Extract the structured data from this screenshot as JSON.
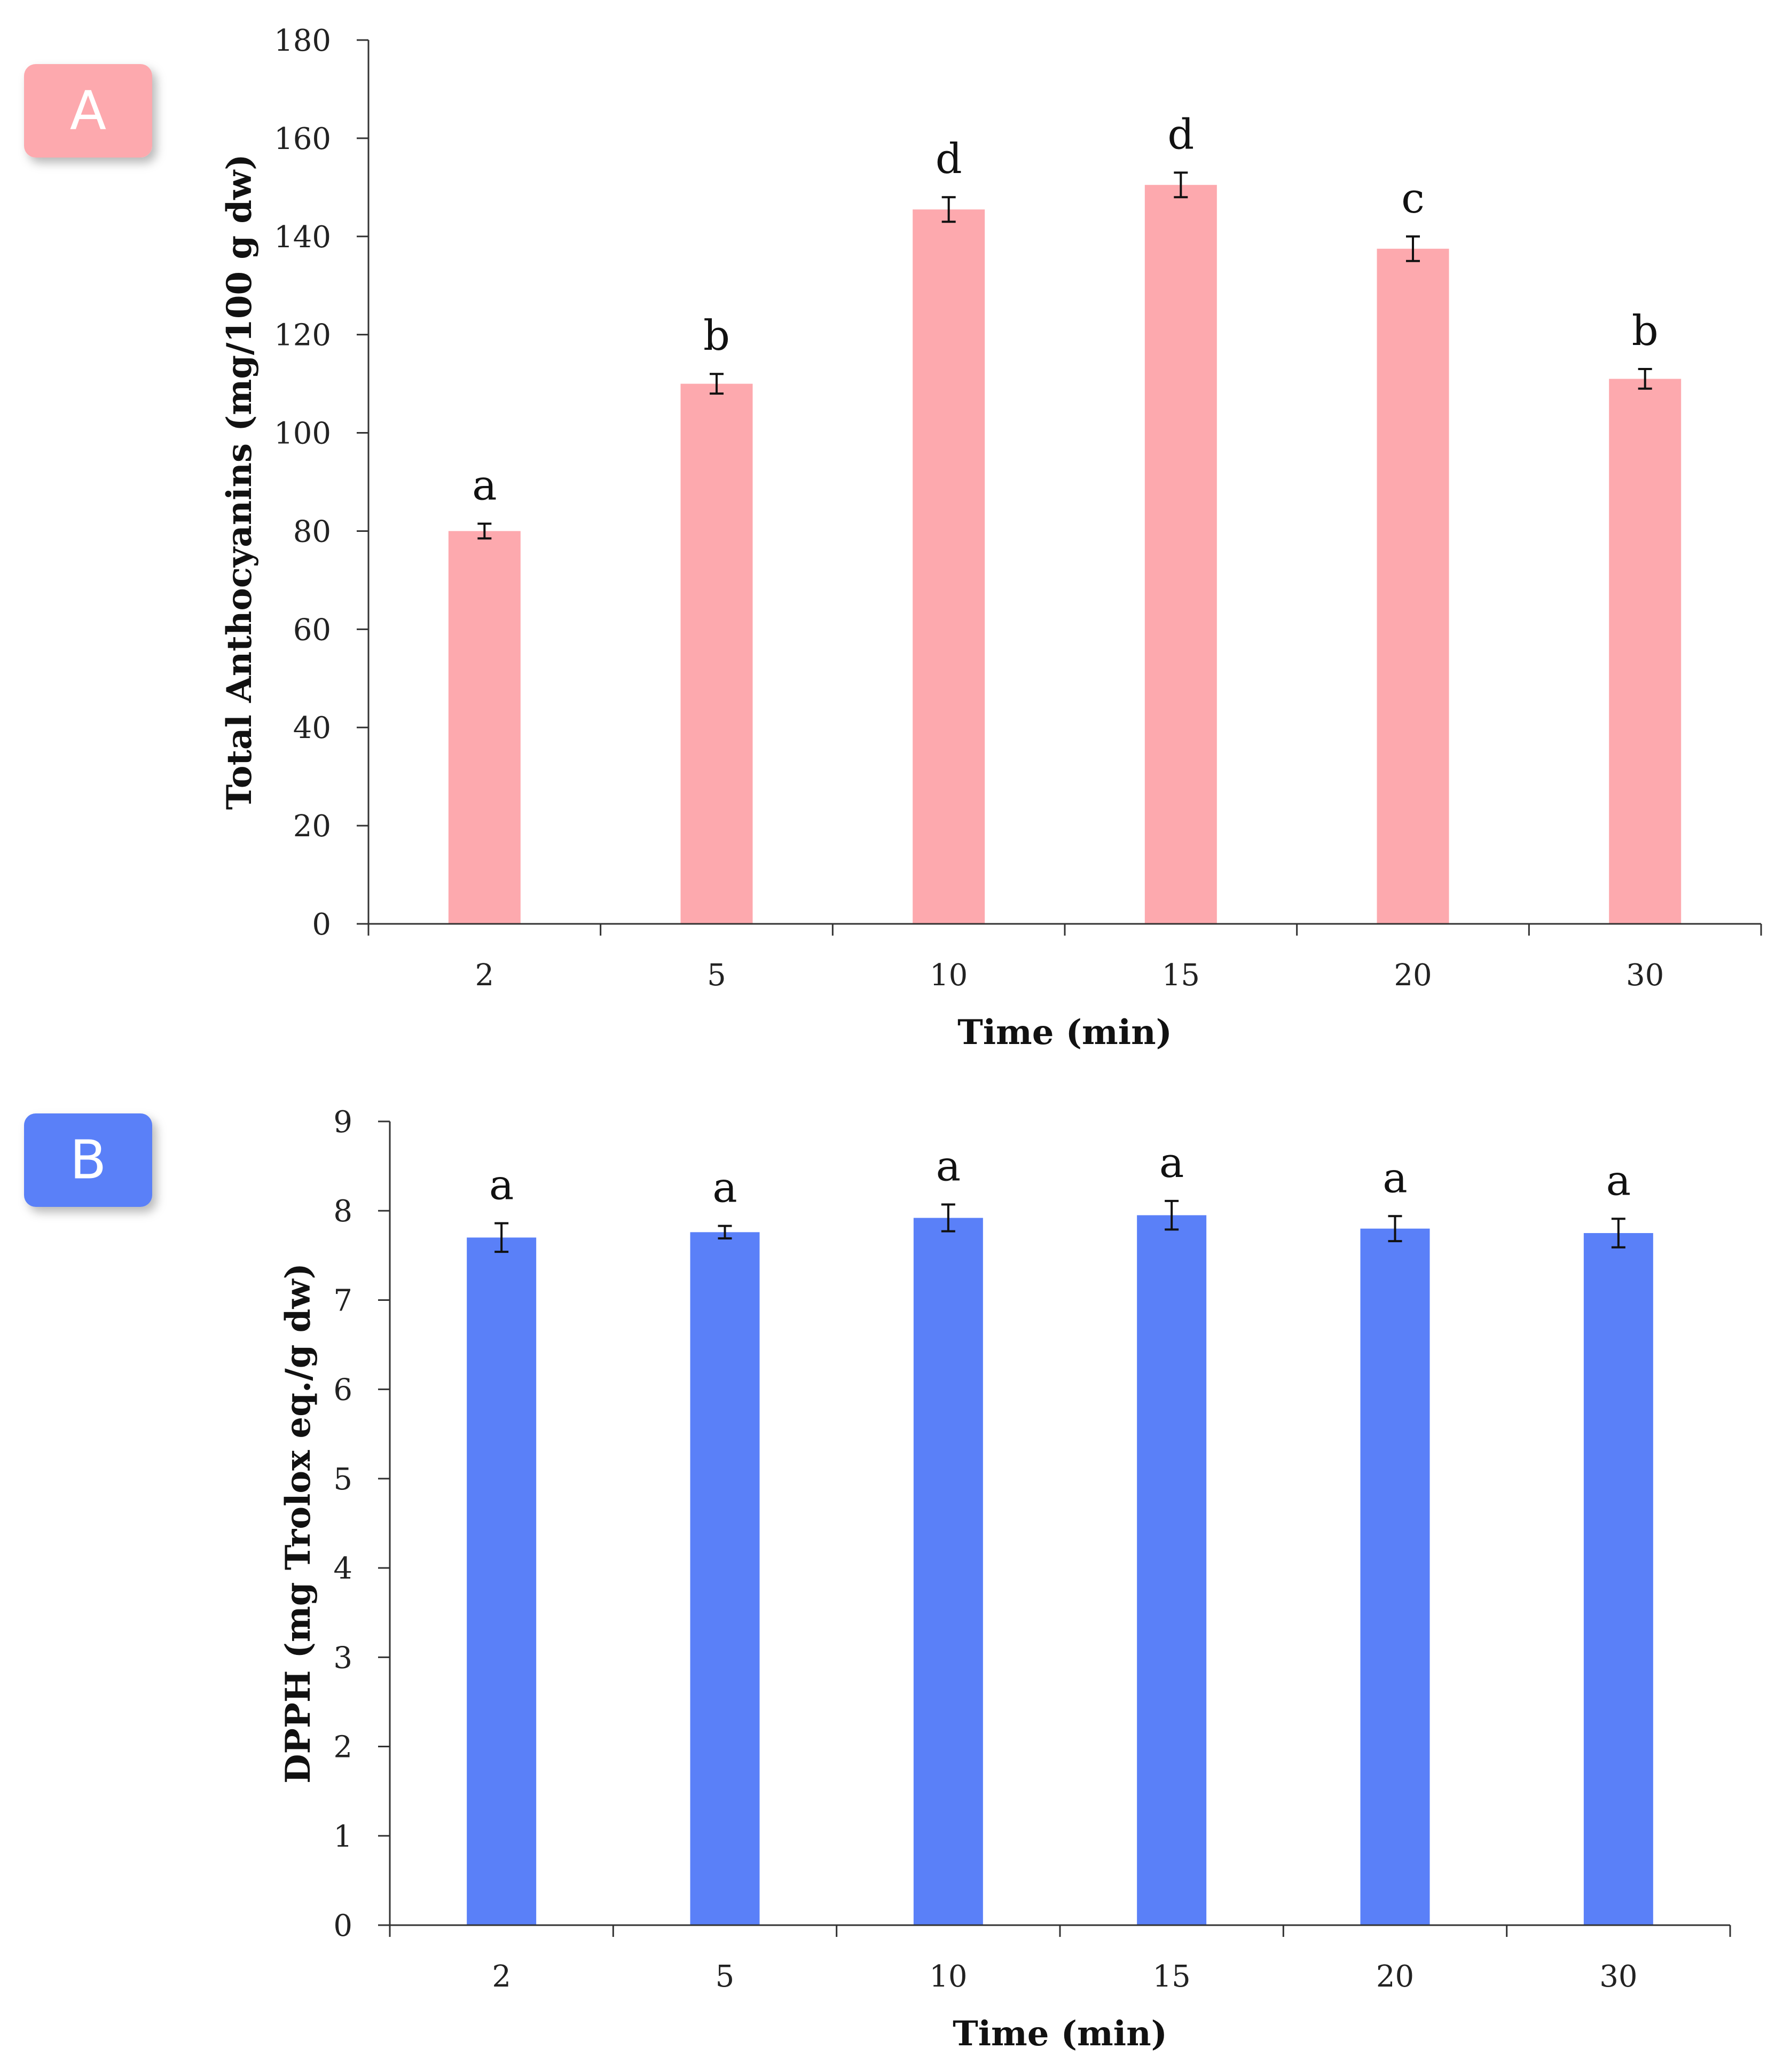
{
  "panels": [
    {
      "label": "A",
      "label_color": "#FDA9AE",
      "bar_color": "#FDA9AE",
      "chart_data": {
        "type": "bar",
        "title": "",
        "categories": [
          "2",
          "5",
          "10",
          "15",
          "20",
          "30"
        ],
        "values": [
          80,
          110,
          145.5,
          150.5,
          137.5,
          111
        ],
        "errors": [
          1.5,
          2,
          2.5,
          2.5,
          2.5,
          2
        ],
        "significance": [
          "a",
          "b",
          "d",
          "d",
          "c",
          "b"
        ],
        "xlabel": "Time (min)",
        "ylabel": "Total Anthocyanins (mg/100 g dw)",
        "ylim": [
          0,
          180
        ],
        "yticks": [
          0,
          20,
          40,
          60,
          80,
          100,
          120,
          140,
          160,
          180
        ],
        "grid": false
      }
    },
    {
      "label": "B",
      "label_color": "#5A80F8",
      "bar_color": "#5A80F8",
      "chart_data": {
        "type": "bar",
        "title": "",
        "categories": [
          "2",
          "5",
          "10",
          "15",
          "20",
          "30"
        ],
        "values": [
          7.7,
          7.76,
          7.92,
          7.95,
          7.8,
          7.75
        ],
        "errors": [
          0.16,
          0.07,
          0.15,
          0.16,
          0.14,
          0.16
        ],
        "significance": [
          "a",
          "a",
          "a",
          "a",
          "a",
          "a"
        ],
        "xlabel": "Time (min)",
        "ylabel": "DPPH (mg Trolox eq./g dw)",
        "ylim": [
          0,
          9
        ],
        "yticks": [
          0,
          1,
          2,
          3,
          4,
          5,
          6,
          7,
          8,
          9
        ],
        "grid": false
      }
    }
  ]
}
